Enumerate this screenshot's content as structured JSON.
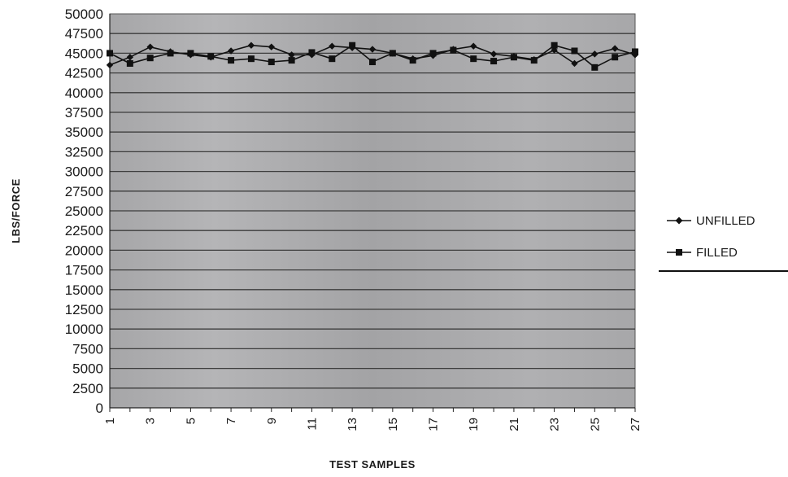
{
  "chart_data": {
    "type": "line",
    "xlabel": "TEST SAMPLES",
    "ylabel": "LBS/FORCE",
    "ylim": [
      0,
      50000
    ],
    "y_ticks": [
      0,
      2500,
      5000,
      7500,
      10000,
      12500,
      15000,
      17500,
      20000,
      22500,
      25000,
      27500,
      30000,
      32500,
      35000,
      37500,
      40000,
      42500,
      45000,
      47500,
      50000
    ],
    "x": [
      1,
      2,
      3,
      4,
      5,
      6,
      7,
      8,
      9,
      10,
      11,
      12,
      13,
      14,
      15,
      16,
      17,
      18,
      19,
      20,
      21,
      22,
      23,
      24,
      25,
      26,
      27
    ],
    "x_tick_labels": [
      "1",
      "3",
      "5",
      "7",
      "9",
      "11",
      "13",
      "15",
      "17",
      "19",
      "21",
      "23",
      "25",
      "27"
    ],
    "x_tick_positions": [
      1,
      3,
      5,
      7,
      9,
      11,
      13,
      15,
      17,
      19,
      21,
      23,
      25,
      27
    ],
    "grid": true,
    "legend_position": "right",
    "series": [
      {
        "name": "UNFILLED",
        "marker": "diamond",
        "color": "#111111",
        "values": [
          43500,
          44500,
          45800,
          45200,
          44800,
          44500,
          45300,
          46000,
          45800,
          44800,
          44800,
          45900,
          45700,
          45500,
          45000,
          44300,
          44700,
          45500,
          45900,
          44900,
          44600,
          44200,
          45400,
          43700,
          44900,
          45600,
          44800
        ]
      },
      {
        "name": "FILLED",
        "marker": "square",
        "color": "#111111",
        "values": [
          45000,
          43700,
          44400,
          45000,
          45000,
          44600,
          44100,
          44300,
          43900,
          44100,
          45100,
          44300,
          46000,
          43900,
          45000,
          44100,
          45000,
          45400,
          44300,
          44000,
          44500,
          44100,
          46000,
          45300,
          43200,
          44500,
          45200
        ]
      }
    ]
  }
}
